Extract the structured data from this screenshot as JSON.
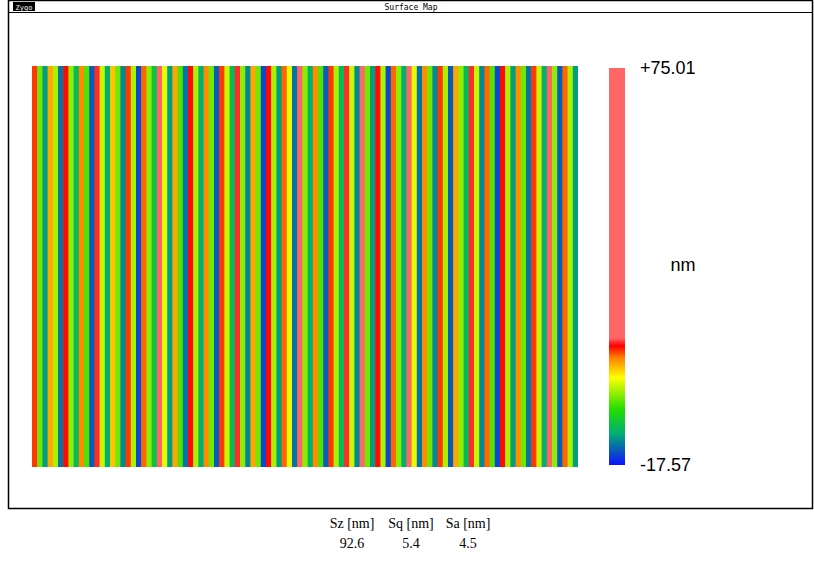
{
  "window": {
    "logo": "Zygo",
    "title": "Surface Map"
  },
  "chart_data": {
    "type": "heatmap",
    "tick_labels": false,
    "cells": [
      [
        9,
        -2,
        -11,
        6,
        0,
        -13,
        10,
        -1,
        -9,
        7,
        -3,
        -14,
        11,
        1,
        -10,
        5,
        -2,
        -12,
        9,
        0,
        -15,
        8,
        -1,
        -8,
        12,
        2,
        -11,
        6,
        -3,
        -13,
        10,
        0,
        -10,
        7,
        -2,
        -14,
        9,
        1,
        -9,
        11,
        -1,
        -12,
        6,
        -2,
        -15,
        10,
        0,
        -11,
        8,
        2,
        -13,
        12,
        -1,
        -10,
        7,
        -3,
        -14,
        9,
        0,
        -9,
        11,
        1,
        -12,
        18,
        -2,
        -11,
        10,
        0,
        -15,
        8,
        -1,
        -10,
        13,
        2,
        -13,
        7,
        -2,
        -12,
        9,
        0,
        -14,
        6,
        -1,
        -9,
        11,
        1,
        -12,
        8,
        -3,
        -15,
        10,
        0,
        -11,
        7,
        -2,
        -13,
        9,
        1,
        -10,
        12,
        -1,
        -14,
        8,
        0,
        -11
      ]
    ],
    "colorbar": {
      "range": [
        -17.57,
        75.01
      ],
      "ticks": [
        {
          "value": 75.01,
          "label": "+75.01"
        },
        {
          "value": -17.57,
          "label": "-17.57"
        }
      ],
      "label": "nm"
    }
  },
  "table": {
    "columns": [
      "Sz [nm]",
      "Sq [nm]",
      "Sa [nm]"
    ],
    "rows": [
      [
        92.6,
        5.4,
        4.5
      ]
    ]
  }
}
